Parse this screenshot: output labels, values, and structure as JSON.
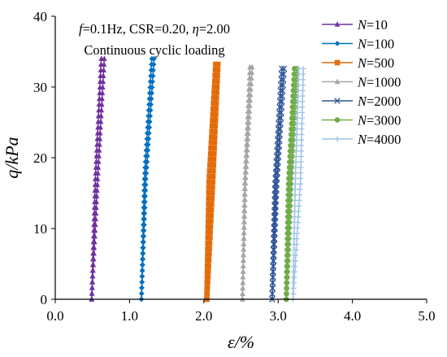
{
  "chart_data": {
    "type": "line",
    "xlabel": "ε/%",
    "ylabel": "q/kPa",
    "xlim": [
      0.0,
      5.0
    ],
    "ylim": [
      0,
      40
    ],
    "x_ticks": [
      "0.0",
      "1.0",
      "2.0",
      "3.0",
      "4.0",
      "5.0"
    ],
    "y_ticks": [
      "0",
      "10",
      "20",
      "30",
      "40"
    ],
    "grid": false,
    "legend_position": "top-right",
    "annotations": {
      "line1": "f=0.1Hz, CSR=0.20, η=2.00",
      "line2": "Continuous cyclic loading"
    },
    "series": [
      {
        "name": "N=10",
        "label_var": "N",
        "label_value": "=10",
        "color": "#7030A0",
        "marker": "triangle",
        "load_x": [
          0.49,
          0.57,
          0.66
        ],
        "unload_x": [
          0.49,
          0.54,
          0.62
        ],
        "q_max": 34
      },
      {
        "name": "N=100",
        "label_var": "N",
        "label_value": "=100",
        "color": "#0070C0",
        "marker": "diamond",
        "load_x": [
          1.16,
          1.22,
          1.33
        ],
        "unload_x": [
          1.16,
          1.2,
          1.3
        ],
        "q_max": 34
      },
      {
        "name": "N=500",
        "label_var": "N",
        "label_value": "=500",
        "color": "#E36C0A",
        "marker": "square",
        "load_x": [
          2.04,
          2.12,
          2.19
        ],
        "unload_x": [
          2.04,
          2.07,
          2.16
        ],
        "q_max": 33.2
      },
      {
        "name": "N=1000",
        "label_var": "N",
        "label_value": "=1000",
        "color": "#A6A6A6",
        "marker": "triangle",
        "load_x": [
          2.52,
          2.56,
          2.65
        ],
        "unload_x": [
          2.52,
          2.55,
          2.62
        ],
        "q_max": 32.8
      },
      {
        "name": "N=2000",
        "label_var": "N",
        "label_value": "=2000",
        "color": "#2F5597",
        "marker": "x",
        "load_x": [
          2.92,
          2.98,
          3.08
        ],
        "unload_x": [
          2.92,
          2.96,
          3.05
        ],
        "q_max": 32.6
      },
      {
        "name": "N=3000",
        "label_var": "N",
        "label_value": "=3000",
        "color": "#70AD47",
        "marker": "circle",
        "load_x": [
          3.11,
          3.17,
          3.25
        ],
        "unload_x": [
          3.11,
          3.14,
          3.22
        ],
        "q_max": 32.6
      },
      {
        "name": "N=4000",
        "label_var": "N",
        "label_value": "=4000",
        "color": "#9DC3E6",
        "marker": "plus",
        "load_x": [
          3.2,
          3.3,
          3.34
        ],
        "unload_x": [
          3.2,
          3.23,
          3.28
        ],
        "q_max": 32.6
      }
    ]
  }
}
